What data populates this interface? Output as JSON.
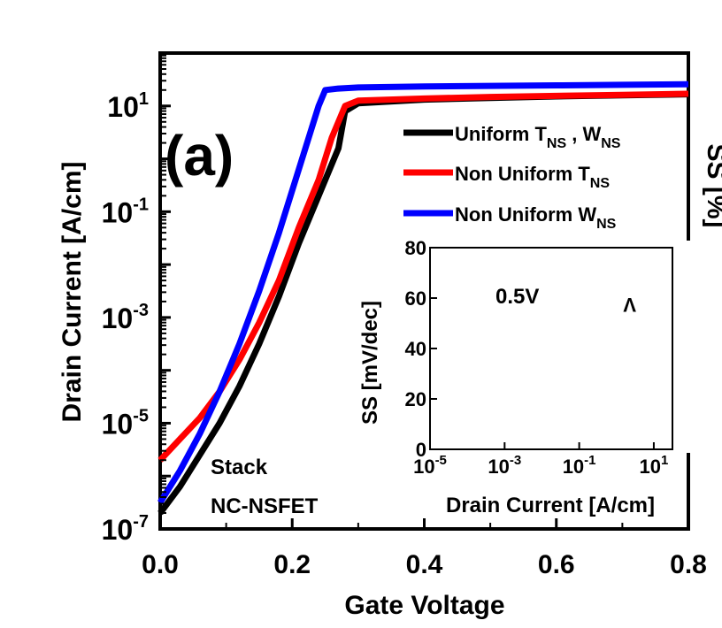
{
  "chart_data": {
    "type": "line",
    "panel_label": "(a)",
    "xlabel": "Gate Voltage",
    "ylabel": "Drain Current [A/cm]",
    "right_axis_label_fragment": "SS [%]",
    "xlim": [
      0.0,
      0.8
    ],
    "ylim_log10": [
      -7,
      2
    ],
    "y_scale": "log",
    "x_ticks": [
      "0.0",
      "0.2",
      "0.4",
      "0.6",
      "0.8"
    ],
    "y_ticks": [
      {
        "mant": "10",
        "exp": "1",
        "log": 1
      },
      {
        "mant": "10",
        "exp": "-1",
        "log": -1
      },
      {
        "mant": "10",
        "exp": "-3",
        "log": -3
      },
      {
        "mant": "10",
        "exp": "-5",
        "log": -5
      },
      {
        "mant": "10",
        "exp": "-7",
        "log": -7
      }
    ],
    "annotation_line1": "Stack",
    "annotation_line2": "NC-NSFET",
    "legend_placement": "top-right",
    "legend": [
      {
        "text": "Uniform T",
        "sub": "NS",
        "text2": " , W",
        "sub2": "NS",
        "color": "#000000"
      },
      {
        "text": "Non Uniform T",
        "sub": "NS",
        "text2": "",
        "sub2": "",
        "color": "#ff0000"
      },
      {
        "text": "Non Uniform W",
        "sub": "NS",
        "text2": "",
        "sub2": "",
        "color": "#0000ff"
      }
    ],
    "series": [
      {
        "color": "#000000",
        "x": [
          0.0,
          0.03,
          0.06,
          0.09,
          0.12,
          0.15,
          0.18,
          0.21,
          0.24,
          0.27,
          0.28,
          0.3,
          0.4,
          0.5,
          0.6,
          0.7,
          0.8
        ],
        "y_log10": [
          -6.7,
          -6.2,
          -5.6,
          -5.0,
          -4.3,
          -3.5,
          -2.6,
          -1.6,
          -0.7,
          0.2,
          0.9,
          1.05,
          1.12,
          1.15,
          1.18,
          1.2,
          1.22
        ]
      },
      {
        "color": "#ff0000",
        "x": [
          0.0,
          0.03,
          0.06,
          0.09,
          0.12,
          0.15,
          0.18,
          0.21,
          0.24,
          0.26,
          0.28,
          0.3,
          0.4,
          0.5,
          0.6,
          0.7,
          0.8
        ],
        "y_log10": [
          -5.7,
          -5.3,
          -4.9,
          -4.4,
          -3.8,
          -3.1,
          -2.3,
          -1.3,
          -0.4,
          0.4,
          1.0,
          1.1,
          1.14,
          1.17,
          1.19,
          1.21,
          1.23
        ]
      },
      {
        "color": "#0000ff",
        "x": [
          0.0,
          0.03,
          0.06,
          0.09,
          0.12,
          0.15,
          0.18,
          0.21,
          0.24,
          0.25,
          0.27,
          0.3,
          0.4,
          0.5,
          0.6,
          0.7,
          0.8
        ],
        "y_log10": [
          -6.5,
          -5.9,
          -5.2,
          -4.4,
          -3.5,
          -2.5,
          -1.4,
          -0.2,
          1.0,
          1.3,
          1.33,
          1.35,
          1.37,
          1.38,
          1.39,
          1.4,
          1.41
        ]
      }
    ],
    "inset": {
      "type": "line",
      "xlabel": "Drain Current [A/cm]",
      "ylabel": "SS [mV/dec]",
      "x_scale": "log",
      "xlim_log10": [
        -5,
        1.5
      ],
      "ylim": [
        0,
        80
      ],
      "x_ticks": [
        {
          "mant": "10",
          "exp": "-5",
          "log": -5
        },
        {
          "mant": "10",
          "exp": "-3",
          "log": -3
        },
        {
          "mant": "10",
          "exp": "-1",
          "log": -1
        },
        {
          "mant": "10",
          "exp": "1",
          "log": 1
        }
      ],
      "y_ticks": [
        "0",
        "20",
        "40",
        "60",
        "80"
      ],
      "annotation": "0.5V",
      "label_marker": "V"
    }
  }
}
